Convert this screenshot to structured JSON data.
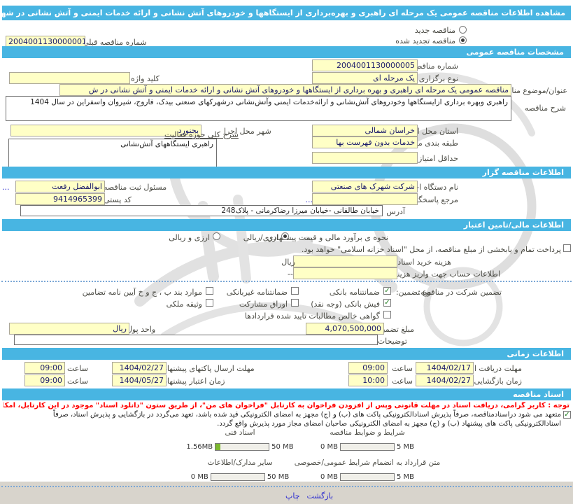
{
  "colors": {
    "accent": "#48b5e2",
    "field": "#ffffc6",
    "notice": "#ff0000",
    "link": "#2a2ad0",
    "progress": "#7cb82f"
  },
  "title_bar": "مشاهده اطلاعات مناقصه عمومی یک مرحله ای راهبری و بهره‌برداری از ایستگاهها و خودروهای آتش نشانی و ارائه خدمات ایمنی و آتش نشانی در شهرکهای صنعتی بیدک، فاروج، شیروان و",
  "tender_type": {
    "new_label": "مناقصه جدید",
    "new_selected": false,
    "renewed_label": "مناقصه تجدید شده",
    "renewed_selected": true,
    "prev_no_label": "شماره مناقصه قبلی",
    "prev_no": "2004001130000001"
  },
  "general": {
    "header": "مشخصات مناقصه عمومی",
    "tender_no_label": "شماره مناقصه",
    "tender_no": "2004001130000005",
    "hold_type_label": "نوع برگزاری",
    "hold_type": "یک مرحله ای",
    "keyword_label": "کلید واژه",
    "keyword": "",
    "subject_label": "عنوان/موضوع مناقصه",
    "subject": "مناقصه عمومی یک مرحله ای راهبری و بهره برداری از ایستگاهها و خودروهای آتش نشانی و ارائه خدمات ایمنی و آتش نشانی در ش",
    "desc_label": "شرح مناقصه",
    "desc": "راهبری وبهره برداری ازایستگاهها وخودروهای آتش‌نشانی و ارائه‌خدمات ایمنی وآتش‌نشانی درشهرکهای صنعتی بیدک، فاروج، شیروان واسفراین در سال 1404",
    "province_label": "استان محل اجرا",
    "province": "خراسان شمالی",
    "city_label": "شهر محل اجرا",
    "city": "بجنورد",
    "category_label": "طبقه بندی موضوعی",
    "category": "خدمات بدون فهرست بها",
    "activity_label": "شرح کلی حوزه فعالیت",
    "activity": "راهبری ایستگاههای آتش‌نشانی",
    "min_score_label": "حداقل امتیاز قابل قبول ارزیابی فنی /بازرگانی",
    "min_score": ""
  },
  "agency": {
    "header": "اطلاعات مناقصه گزار",
    "agency_label": "نام دستگاه اجرایی مناقصه گزار",
    "agency": "شرکت شهرک های صنعتی",
    "registrar_label": "مسئول ثبت مناقصه",
    "registrar": "ابوالفضل رفعت",
    "more": "...",
    "respond_label": "مرجع پاسخگویی",
    "respond": "",
    "postal_label": "کد پستی",
    "postal": "9414965399",
    "address_label": "آدرس",
    "address": "خیابان طالقانی -خیابان میرزا رضاکرمانی - پلاک248"
  },
  "financial": {
    "header": "اطلاعات مالی/تامین اعتبار",
    "method_label": "نحوه ی برآورد مالی و قیمت پیشنهادی",
    "rial_label": "ارزی/ریالی",
    "rial_selected": true,
    "both_label": "ارزی و ریالی",
    "both_selected": false,
    "treasury_note": "پرداخت تمام و یابخشی از مبلغ مناقصه، از محل \"اسناد خزانه اسلامی\" خواهد بود.",
    "treasury_checked": false,
    "doc_cost_label": "هزینه خرید اسناد",
    "doc_cost": "",
    "unit": "ریال",
    "account_label": "اطلاعات حساب جهت واریز هزینه خرید اسناد",
    "account": "--",
    "participation_label": "تضمین شرکت در مناقصه:",
    "type_label": "نوع تضمین:",
    "checkboxes": [
      {
        "label": "ضمانتنامه بانکی",
        "checked": true
      },
      {
        "label": "ضمانتنامه غیربانکی",
        "checked": false
      },
      {
        "label": "موارد بند ب ، ج و خ آیین نامه تضامین",
        "checked": false
      },
      {
        "label": "فیش بانکی (وجه نقد)",
        "checked": true
      },
      {
        "label": "اوراق مشارکت",
        "checked": false
      },
      {
        "label": "وثیقه ملکی",
        "checked": false
      },
      {
        "label": "گواهی خالص مطالبات تایید شده قراردادها",
        "checked": false
      }
    ],
    "amount_label": "مبلغ تضمین",
    "amount": "4,070,500,000",
    "currency_label": "واحد پول",
    "currency": "ریال",
    "notes_label": "توضیحات",
    "notes": ""
  },
  "schedule": {
    "header": "اطلاعات زمانی",
    "time_label": "ساعت",
    "items": [
      {
        "label": "مهلت دریافت اسناد",
        "date": "1404/02/17",
        "time": "09:00"
      },
      {
        "label": "مهلت ارسال پاکتهای پیشنهاد",
        "date": "1404/02/27",
        "time": "09:00"
      },
      {
        "label": "زمان بازگشایی پاکت‌ها",
        "date": "1404/02/27",
        "time": "10:00"
      },
      {
        "label": "زمان اعتبار پیشنهاد",
        "date": "1404/05/27",
        "time": "09:00"
      }
    ]
  },
  "documents": {
    "header": "اسناد مناقصه",
    "notice": "توجه : کاربر گرامی، دریافت اسناد در مهلت قانونی وپس از افزودن فراخوان به کارتابل \"فراخوان های من\"، از طریق ستون \"دانلود اسناد\" موجود در این کارتابل، امکانپذیر می‌باشد.",
    "commitment": "متعهد می شود دراسنادمناقصه، صرفاً پذیرش اسنادالکترونیکی پاکت های (ب) و (ج) مجهز به امضای الکترونیکی قید شده باشد، تعهد می‌گردد در بازگشایی و پذیرش اسناد، صرفاً اسنادالکترونیکی پاکت های پیشنهاد (ب) و (ج) مجهز به امضای الکترونیکی صاحبان امضای مجاز مورد پذیرش واقع گردد.",
    "commitment_checked": true,
    "uploads": [
      {
        "label": "شرایط و ضوابط مناقصه",
        "current": "0 MB",
        "max": "5 MB",
        "fill": 0
      },
      {
        "label": "اسناد فنی",
        "current": "1.56MB",
        "max": "50 MB",
        "fill": 9
      },
      {
        "label": "متن قرارداد به انضمام شرایط عمومی/خصوصی",
        "current": "0 MB",
        "max": "5 MB",
        "fill": 0
      },
      {
        "label": "سایر مدارک/اطلاعات",
        "current": "0 MB",
        "max": "50 MB",
        "fill": 0
      }
    ]
  },
  "footer": {
    "back": "بازگشت",
    "print": "چاپ"
  }
}
